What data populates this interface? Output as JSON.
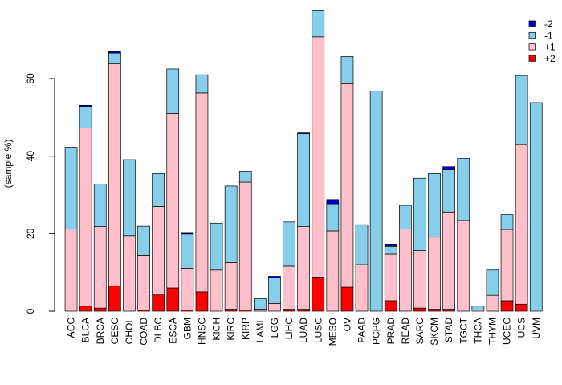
{
  "chart_data": {
    "type": "bar",
    "stacked": true,
    "title": "",
    "xlabel": "",
    "ylabel": "(sample %)",
    "ylim": [
      0,
      78
    ],
    "yticks": [
      0,
      20,
      40,
      60
    ],
    "categories": [
      "ACC",
      "BLCA",
      "BRCA",
      "CESC",
      "CHOL",
      "COAD",
      "DLBC",
      "ESCA",
      "GBM",
      "HNSC",
      "KICH",
      "KIRC",
      "KIRP",
      "LAML",
      "LGG",
      "LIHC",
      "LUAD",
      "LUSC",
      "MESO",
      "OV",
      "PAAD",
      "PCPG",
      "PRAD",
      "READ",
      "SARC",
      "SKCM",
      "STAD",
      "TGCT",
      "THCA",
      "THYM",
      "UCEC",
      "UCS",
      "UVM"
    ],
    "series": [
      {
        "name": "+2",
        "color": "#ff0000",
        "values": [
          0,
          1.3,
          0.8,
          6.5,
          0,
          0.3,
          4.2,
          6,
          0.3,
          5,
          0,
          0.5,
          0.3,
          0,
          0,
          0.5,
          0.5,
          8.8,
          0,
          6.2,
          0,
          0,
          2.7,
          0,
          0.8,
          0.5,
          0.5,
          0,
          0,
          0,
          2.7,
          1.8,
          0
        ]
      },
      {
        "name": "+1",
        "color": "#ffc0cb",
        "values": [
          21.2,
          46,
          21,
          57.3,
          19.5,
          14.1,
          22.8,
          45,
          10.8,
          51.3,
          10.6,
          12,
          33,
          0.5,
          2,
          11.1,
          21.3,
          62,
          20.7,
          52.5,
          12,
          0,
          12,
          21.2,
          14.8,
          18.6,
          25.1,
          23.4,
          0.3,
          4.1,
          18.4,
          41.2,
          0
        ]
      },
      {
        "name": "-1",
        "color": "#87ceeb",
        "values": [
          21.1,
          5.5,
          11,
          2.8,
          19.6,
          7.5,
          8.5,
          11.5,
          8.8,
          4.7,
          12.1,
          19.8,
          2.8,
          2.7,
          6.6,
          11.4,
          24,
          6.7,
          7,
          7,
          10.3,
          56.8,
          2,
          6.1,
          18.7,
          16.4,
          10.9,
          16,
          1,
          6.5,
          3.8,
          17.8,
          53.8
        ]
      },
      {
        "name": "-2",
        "color": "#0000cd",
        "values": [
          0,
          0.3,
          0,
          0.4,
          0,
          0,
          0,
          0,
          0.4,
          0,
          0,
          0,
          0,
          0,
          0.4,
          0,
          0.2,
          0,
          1.1,
          0,
          0,
          0,
          0.6,
          0,
          0,
          0,
          0.8,
          0,
          0,
          0,
          0,
          0,
          0
        ]
      }
    ],
    "legend_position": "top-right"
  }
}
